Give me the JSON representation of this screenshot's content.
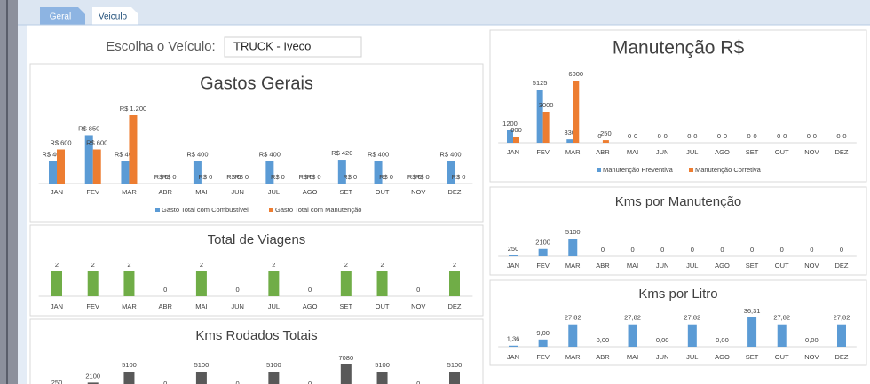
{
  "tabs": [
    "Geral",
    "Veiculo"
  ],
  "vehicle_selector": {
    "label": "Escolha o Veículo:",
    "value": "TRUCK - Iveco"
  },
  "chart_data": [
    {
      "type": "bar",
      "title": "Gastos Gerais",
      "categories": [
        "JAN",
        "FEV",
        "MAR",
        "ABR",
        "MAI",
        "JUN",
        "JUL",
        "AGO",
        "SET",
        "OUT",
        "NOV",
        "DEZ"
      ],
      "series": [
        {
          "name": "Gasto Total com Combustível",
          "color": "#5b9bd5",
          "values": [
            400,
            850,
            400,
            0,
            400,
            0,
            400,
            0,
            420,
            400,
            0,
            400
          ],
          "value_labels": [
            "R$ 400",
            "R$ 850",
            "R$ 400",
            "R$ 0",
            "R$ 400",
            "R$ 0",
            "R$ 400",
            "R$ 0",
            "R$ 420",
            "R$ 400",
            "R$ 0",
            "R$ 400"
          ]
        },
        {
          "name": "Gasto Total com Manutenção",
          "color": "#ed7d31",
          "values": [
            600,
            600,
            1200,
            0,
            0,
            0,
            0,
            0,
            0,
            0,
            0,
            0
          ],
          "value_labels": [
            "R$ 600",
            "R$ 600",
            "R$ 1.200",
            "R$ 0",
            "R$ 0",
            "R$ 0",
            "R$ 0",
            "R$ 0",
            "R$ 0",
            "R$ 0",
            "R$ 0",
            "R$ 0"
          ]
        }
      ]
    },
    {
      "type": "bar",
      "title": "Total de Viagens",
      "categories": [
        "JAN",
        "FEV",
        "MAR",
        "ABR",
        "MAI",
        "JUN",
        "JUL",
        "AGO",
        "SET",
        "OUT",
        "NOV",
        "DEZ"
      ],
      "series": [
        {
          "color": "#70ad47",
          "values": [
            2,
            2,
            2,
            0,
            2,
            0,
            2,
            0,
            2,
            2,
            0,
            2
          ]
        }
      ]
    },
    {
      "type": "bar",
      "title": "Kms Rodados Totais",
      "series": [
        {
          "color": "#595959",
          "values": [
            250,
            2100,
            5100,
            0,
            5100,
            0,
            5100,
            0,
            7080,
            5100,
            0,
            5100
          ]
        }
      ]
    },
    {
      "type": "bar",
      "title": "Manutenção R$",
      "categories": [
        "JAN",
        "FEV",
        "MAR",
        "ABR",
        "MAI",
        "JUN",
        "JUL",
        "AGO",
        "SET",
        "OUT",
        "NOV",
        "DEZ"
      ],
      "series": [
        {
          "name": "Manutenção Preventiva",
          "color": "#5b9bd5",
          "values": [
            1200,
            5125,
            330,
            0,
            0,
            0,
            0,
            0,
            0,
            0,
            0,
            0
          ]
        },
        {
          "name": "Manutenção Corretiva",
          "color": "#ed7d31",
          "values": [
            600,
            3000,
            6000,
            250,
            0,
            0,
            0,
            0,
            0,
            0,
            0,
            0
          ]
        }
      ]
    },
    {
      "type": "bar",
      "title": "Kms por Manutenção",
      "categories": [
        "JAN",
        "FEV",
        "MAR",
        "ABR",
        "MAI",
        "JUN",
        "JUL",
        "AGO",
        "SET",
        "OUT",
        "NOV",
        "DEZ"
      ],
      "series": [
        {
          "color": "#5b9bd5",
          "values": [
            250,
            2100,
            5100,
            0,
            0,
            0,
            0,
            0,
            0,
            0,
            0,
            0
          ]
        }
      ]
    },
    {
      "type": "bar",
      "title": "Kms por Litro",
      "categories": [
        "JAN",
        "FEV",
        "MAR",
        "ABR",
        "MAI",
        "JUN",
        "JUL",
        "AGO",
        "SET",
        "OUT",
        "NOV",
        "DEZ"
      ],
      "series": [
        {
          "color": "#5b9bd5",
          "values": [
            1.36,
            9.0,
            27.82,
            0,
            27.82,
            0,
            27.82,
            0,
            36.31,
            27.82,
            0,
            27.82
          ],
          "value_labels": [
            "1,36",
            "9,00",
            "27,82",
            "0,00",
            "27,82",
            "0,00",
            "27,82",
            "0,00",
            "36,31",
            "27,82",
            "0,00",
            "27,82"
          ]
        }
      ]
    }
  ]
}
